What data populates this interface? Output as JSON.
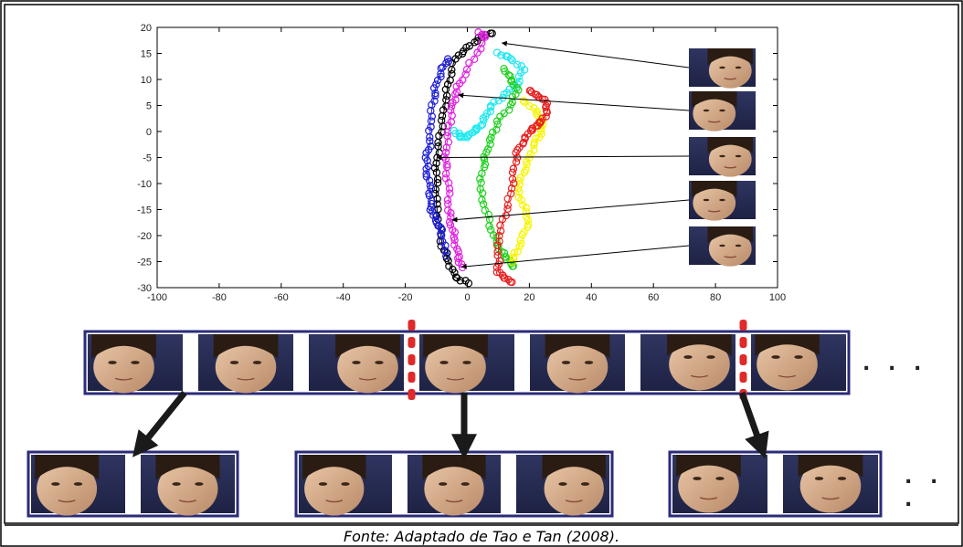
{
  "caption": "Fonte: Adaptado de Tao e Tan (2008).",
  "ellipsis": ". . .",
  "colors": {
    "black": "#000000",
    "blue": "#1f1fd6",
    "magenta": "#e020e0",
    "cyan": "#22e8f0",
    "green": "#22d022",
    "yellow": "#f5f500",
    "red": "#e82020",
    "strip_border": "#2b2b7a",
    "separator": "#e02a2a",
    "arrow": "#1a1a1a"
  },
  "chart_data": {
    "type": "scatter",
    "xlim": [
      -100,
      100
    ],
    "ylim": [
      -30,
      20
    ],
    "xticks": [
      -100,
      -80,
      -60,
      -40,
      -20,
      0,
      20,
      40,
      60,
      80,
      100
    ],
    "yticks": [
      20,
      15,
      10,
      5,
      0,
      -5,
      -10,
      -15,
      -20,
      -25,
      -30
    ],
    "xlabel": "",
    "ylabel": "",
    "title": "",
    "grid": false,
    "marker": "open-circle",
    "series": [
      {
        "color": "black",
        "points": [
          [
            8,
            19
          ],
          [
            4,
            18
          ],
          [
            0,
            16
          ],
          [
            -4,
            14
          ],
          [
            -6,
            10
          ],
          [
            -7,
            6
          ],
          [
            -8,
            2
          ],
          [
            -9,
            -2
          ],
          [
            -10,
            -6
          ],
          [
            -10,
            -10
          ],
          [
            -10,
            -14
          ],
          [
            -9,
            -18
          ],
          [
            -8,
            -22
          ],
          [
            -6,
            -25
          ],
          [
            -4,
            -28
          ],
          [
            0,
            -29
          ]
        ]
      },
      {
        "color": "blue",
        "points": [
          [
            -6,
            14
          ],
          [
            -8,
            12
          ],
          [
            -10,
            9
          ],
          [
            -11,
            6
          ],
          [
            -12,
            2
          ],
          [
            -12,
            -2
          ],
          [
            -13,
            -5
          ],
          [
            -13,
            -8
          ],
          [
            -12,
            -11
          ],
          [
            -12,
            -14
          ],
          [
            -11,
            -16
          ],
          [
            -9,
            -18
          ],
          [
            -8,
            -20
          ],
          [
            -7,
            -24
          ]
        ]
      },
      {
        "color": "magenta",
        "points": [
          [
            4,
            19
          ],
          [
            6,
            18
          ],
          [
            2,
            14
          ],
          [
            -2,
            10
          ],
          [
            -4,
            7
          ],
          [
            -5,
            4
          ],
          [
            -6,
            0
          ],
          [
            -7,
            -4
          ],
          [
            -7,
            -7
          ],
          [
            -6,
            -11
          ],
          [
            -6,
            -15
          ],
          [
            -5,
            -18
          ],
          [
            -4,
            -21
          ],
          [
            -3,
            -24
          ],
          [
            -2,
            -26
          ]
        ]
      },
      {
        "color": "cyan",
        "points": [
          [
            10,
            15
          ],
          [
            14,
            14
          ],
          [
            18,
            12
          ],
          [
            16,
            9
          ],
          [
            12,
            7
          ],
          [
            8,
            5
          ],
          [
            6,
            3
          ],
          [
            4,
            1
          ],
          [
            2,
            0
          ],
          [
            0,
            -1
          ],
          [
            -2,
            -1
          ],
          [
            -4,
            0
          ]
        ]
      },
      {
        "color": "green",
        "points": [
          [
            12,
            12
          ],
          [
            14,
            10
          ],
          [
            16,
            8
          ],
          [
            14,
            5
          ],
          [
            10,
            2
          ],
          [
            8,
            -1
          ],
          [
            6,
            -4
          ],
          [
            5,
            -7
          ],
          [
            4,
            -11
          ],
          [
            6,
            -15
          ],
          [
            8,
            -19
          ],
          [
            10,
            -22
          ],
          [
            12,
            -24
          ],
          [
            14,
            -25
          ],
          [
            15,
            -26
          ]
        ]
      },
      {
        "color": "yellow",
        "points": [
          [
            18,
            6
          ],
          [
            22,
            4
          ],
          [
            24,
            2
          ],
          [
            24,
            0
          ],
          [
            22,
            -2
          ],
          [
            20,
            -5
          ],
          [
            18,
            -8
          ],
          [
            16,
            -11
          ],
          [
            18,
            -14
          ],
          [
            20,
            -17
          ],
          [
            18,
            -20
          ],
          [
            16,
            -23
          ],
          [
            14,
            -25
          ]
        ]
      },
      {
        "color": "red",
        "points": [
          [
            20,
            8
          ],
          [
            22,
            7
          ],
          [
            25,
            6
          ],
          [
            26,
            4
          ],
          [
            24,
            2
          ],
          [
            22,
            1
          ],
          [
            20,
            0
          ],
          [
            18,
            -2
          ],
          [
            16,
            -4
          ],
          [
            15,
            -8
          ],
          [
            14,
            -12
          ],
          [
            12,
            -16
          ],
          [
            10,
            -20
          ],
          [
            10,
            -24
          ],
          [
            10,
            -27
          ],
          [
            12,
            -28
          ],
          [
            14,
            -29
          ]
        ]
      }
    ],
    "arrow_targets": [
      [
        10,
        17
      ],
      [
        -4,
        7
      ],
      [
        -11,
        -5
      ],
      [
        -6,
        -17
      ],
      [
        -3,
        -26
      ]
    ]
  },
  "strips": {
    "top": {
      "images": 7,
      "gaps": 6,
      "separators_after": [
        2,
        5
      ]
    },
    "bottom": [
      {
        "images": 2
      },
      {
        "images": 3
      },
      {
        "images": 2
      }
    ]
  }
}
